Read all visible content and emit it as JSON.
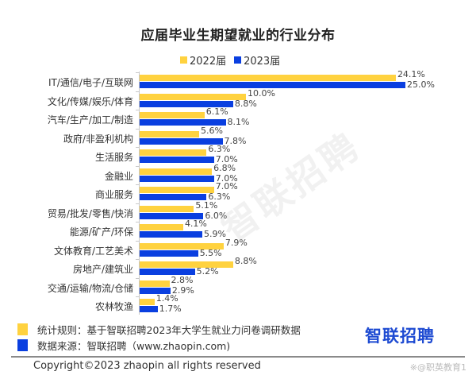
{
  "header": {
    "title": "应届毕业生期望就业的行业分布"
  },
  "legend": [
    {
      "label": "2022届",
      "color": "#FFD23F"
    },
    {
      "label": "2023届",
      "color": "#0A3FE0"
    }
  ],
  "chart_data": {
    "type": "bar",
    "orientation": "horizontal",
    "title": "应届毕业生期望就业的行业分布",
    "xlabel": "",
    "ylabel": "",
    "legend_position": "top",
    "grid": false,
    "categories": [
      "IT/通信/电子/互联网",
      "文化/传媒/娱乐/体育",
      "汽车/生产/加工/制造",
      "政府/非盈利机构",
      "生活服务",
      "金融业",
      "商业服务",
      "贸易/批发/零售/快消",
      "能源/矿产/环保",
      "文体教育/工艺美术",
      "房地产/建筑业",
      "交通/运输/物流/仓储",
      "农林牧渔"
    ],
    "series": [
      {
        "name": "2022届",
        "color": "#FFD23F",
        "values": [
          24.1,
          10.0,
          6.1,
          5.6,
          6.3,
          6.8,
          7.0,
          5.1,
          4.1,
          7.9,
          8.8,
          2.8,
          1.4
        ],
        "labels": [
          "24.1%",
          "10.0%",
          "6.1%",
          "5.6%",
          "6.3%",
          "6.8%",
          "7.0%",
          "5.1%",
          "4.1%",
          "7.9%",
          "8.8%",
          "2.8%",
          "1.4%"
        ]
      },
      {
        "name": "2023届",
        "color": "#0A3FE0",
        "values": [
          25.0,
          8.8,
          8.1,
          7.8,
          7.0,
          7.0,
          6.3,
          6.0,
          5.9,
          5.5,
          5.2,
          2.9,
          1.7
        ],
        "labels": [
          "25.0%",
          "8.8%",
          "8.1%",
          "7.8%",
          "7.0%",
          "7.0%",
          "6.3%",
          "6.0%",
          "5.9%",
          "5.5%",
          "5.2%",
          "2.9%",
          "1.7%"
        ]
      }
    ],
    "unit": "%"
  },
  "watermark": "智联招聘",
  "footer": {
    "rule_label": "统计规则：基于智联招聘2023年大学生就业力问卷调研数据",
    "source_label": "数据来源：智联招聘（www.zhaopin.com)",
    "rule_color": "#FFD23F",
    "source_color": "#0A3FE0",
    "logo": "智联招聘",
    "copyright": "Copyright©2023 zhaopin all rights reserved",
    "credit": "※@职英教育1"
  }
}
